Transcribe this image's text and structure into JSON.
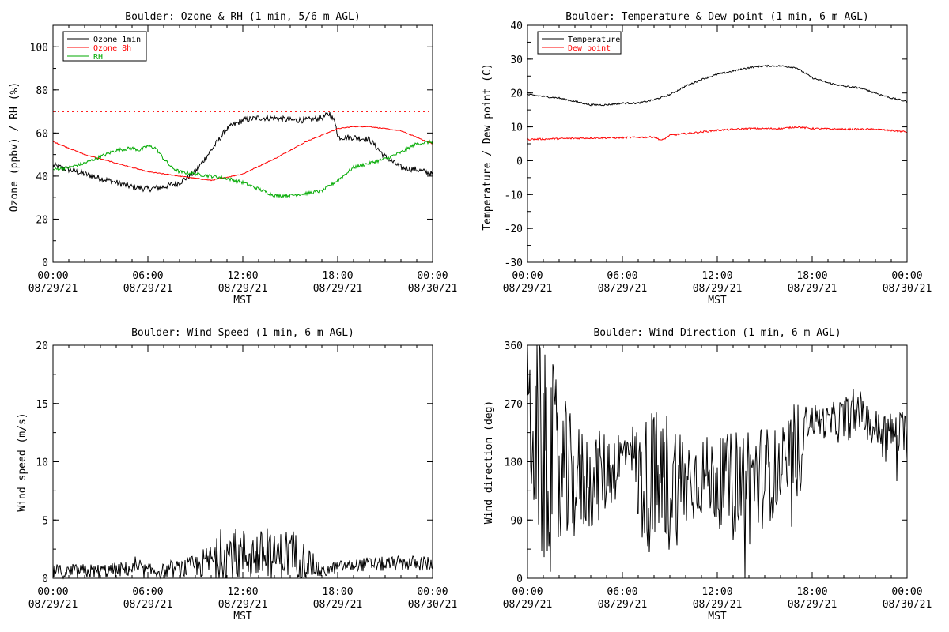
{
  "x_ticks_time": [
    "00:00",
    "06:00",
    "12:00",
    "18:00",
    "00:00"
  ],
  "x_ticks_date": [
    "08/29/21",
    "08/29/21",
    "08/29/21",
    "08/29/21",
    "08/30/21"
  ],
  "chart_data": [
    {
      "type": "line",
      "title": "Boulder: Ozone & RH (1 min, 5/6 m AGL)",
      "xlabel": "MST",
      "ylabel": "Ozone (ppbv) / RH (%)",
      "xlim": [
        "08/29/21 00:00",
        "08/30/21 00:00"
      ],
      "ylim": [
        0,
        110
      ],
      "yticks": [
        0,
        20,
        40,
        60,
        80,
        100
      ],
      "legend_position": "top-left",
      "reference_line": {
        "y": 70,
        "color": "#ff0000",
        "style": "dotted"
      },
      "series": [
        {
          "name": "Ozone 1min",
          "color": "#000000",
          "x": [
            0,
            1,
            2,
            3,
            4,
            5,
            6,
            7,
            8,
            9,
            10,
            11,
            12,
            13,
            14,
            15,
            16,
            17,
            17.5,
            17.9,
            18,
            19,
            20,
            21,
            22,
            23,
            24
          ],
          "values": [
            45,
            43,
            41,
            39,
            37,
            35,
            34,
            35,
            37,
            42,
            52,
            62,
            66,
            67,
            67,
            66,
            66,
            67,
            69,
            64,
            58,
            58,
            57,
            49,
            44,
            43,
            41
          ]
        },
        {
          "name": "Ozone 8h",
          "color": "#ff0000",
          "x": [
            0,
            2,
            4,
            6,
            8,
            9,
            10,
            12,
            14,
            16,
            18,
            19,
            20,
            22,
            24
          ],
          "values": [
            56,
            50,
            46,
            42,
            40,
            39,
            38,
            41,
            48,
            56,
            62,
            63,
            63,
            61,
            55
          ]
        },
        {
          "name": "RH",
          "color": "#00aa00",
          "x": [
            0,
            1,
            2,
            3,
            4,
            5,
            5.5,
            6,
            6.5,
            7,
            7.5,
            8,
            9,
            10,
            11,
            12,
            13,
            14,
            15,
            16,
            17,
            18,
            19,
            20,
            21,
            22,
            23,
            24
          ],
          "values": [
            43,
            44,
            46,
            49,
            52,
            53,
            52,
            54,
            53,
            48,
            44,
            42,
            41,
            40,
            39,
            37,
            34,
            31,
            31,
            32,
            33,
            38,
            44,
            46,
            48,
            51,
            55,
            56
          ]
        }
      ]
    },
    {
      "type": "line",
      "title": "Boulder: Temperature & Dew point (1 min, 6 m AGL)",
      "xlabel": "MST",
      "ylabel": "Temperature / Dew point (C)",
      "xlim": [
        "08/29/21 00:00",
        "08/30/21 00:00"
      ],
      "ylim": [
        -30,
        40
      ],
      "yticks": [
        -30,
        -20,
        -10,
        0,
        10,
        20,
        30,
        40
      ],
      "legend_position": "top-left",
      "series": [
        {
          "name": "Temperature",
          "color": "#000000",
          "x": [
            0,
            1,
            2,
            3,
            4,
            5,
            6,
            7,
            8,
            9,
            10,
            11,
            12,
            13,
            14,
            15,
            16,
            17,
            18,
            19,
            20,
            21,
            22,
            23,
            24
          ],
          "values": [
            19.5,
            19,
            18.5,
            17.5,
            16.5,
            16.5,
            17,
            17,
            18,
            19.5,
            22,
            24,
            25.5,
            26.5,
            27.5,
            28,
            28,
            27.5,
            24.5,
            23,
            22,
            21.5,
            20,
            18.5,
            17.5
          ]
        },
        {
          "name": "Dew point",
          "color": "#ff0000",
          "x": [
            0,
            2,
            4,
            6,
            8,
            8.5,
            9,
            10,
            12,
            14,
            16,
            17,
            18,
            20,
            22,
            24
          ],
          "values": [
            6.3,
            6.5,
            6.7,
            6.8,
            7,
            6,
            7.5,
            8,
            9,
            9.5,
            9.5,
            10,
            9.5,
            9.3,
            9.3,
            8.5
          ]
        }
      ]
    },
    {
      "type": "line",
      "title": "Boulder: Wind Speed (1 min, 6 m AGL)",
      "xlabel": "MST",
      "ylabel": "Wind speed (m/s)",
      "xlim": [
        "08/29/21 00:00",
        "08/30/21 00:00"
      ],
      "ylim": [
        0,
        20
      ],
      "yticks": [
        0,
        5,
        10,
        15,
        20
      ],
      "series": [
        {
          "name": "",
          "color": "#000000",
          "x": [
            0,
            1,
            2,
            3,
            4,
            5,
            6,
            7,
            8,
            9,
            10,
            11,
            12,
            13,
            14,
            15,
            16,
            17,
            18,
            19,
            20,
            21,
            22,
            23,
            24
          ],
          "values": [
            0.6,
            0.5,
            0.6,
            0.6,
            0.7,
            0.8,
            0.6,
            0.6,
            0.8,
            1.0,
            1.5,
            2.0,
            2.0,
            2.0,
            1.8,
            2.2,
            1.5,
            0.5,
            1.0,
            1.1,
            1.2,
            1.2,
            1.3,
            1.3,
            1.2
          ],
          "spread": [
            0.5,
            0.5,
            0.5,
            0.5,
            0.5,
            0.5,
            0.5,
            0.5,
            0.6,
            0.8,
            1.2,
            1.8,
            1.8,
            1.7,
            1.5,
            1.8,
            1.2,
            0.4,
            0.4,
            0.4,
            0.5,
            0.5,
            0.5,
            0.5,
            0.5
          ]
        }
      ]
    },
    {
      "type": "line",
      "title": "Boulder: Wind Direction (1 min, 6 m AGL)",
      "xlabel": "MST",
      "ylabel": "Wind direction (deg)",
      "xlim": [
        "08/29/21 00:00",
        "08/30/21 00:00"
      ],
      "ylim": [
        0,
        360
      ],
      "yticks": [
        0,
        90,
        180,
        270,
        360
      ],
      "series": [
        {
          "name": "",
          "color": "#000000",
          "x": [
            0,
            0.5,
            1,
            1.5,
            2,
            2.5,
            3,
            4,
            5,
            6,
            6.5,
            7,
            8,
            9,
            10,
            11,
            12,
            13,
            14,
            15,
            16,
            17,
            17.5,
            18,
            19,
            20,
            21,
            22,
            23,
            24
          ],
          "values": [
            250,
            230,
            180,
            170,
            160,
            150,
            150,
            150,
            165,
            185,
            215,
            150,
            145,
            150,
            150,
            160,
            150,
            150,
            150,
            160,
            165,
            160,
            240,
            245,
            240,
            245,
            255,
            230,
            225,
            220
          ],
          "spread": [
            90,
            120,
            130,
            130,
            110,
            90,
            70,
            60,
            50,
            40,
            20,
            70,
            90,
            90,
            60,
            50,
            50,
            60,
            80,
            60,
            50,
            90,
            20,
            20,
            20,
            30,
            20,
            25,
            25,
            30
          ]
        }
      ]
    }
  ]
}
